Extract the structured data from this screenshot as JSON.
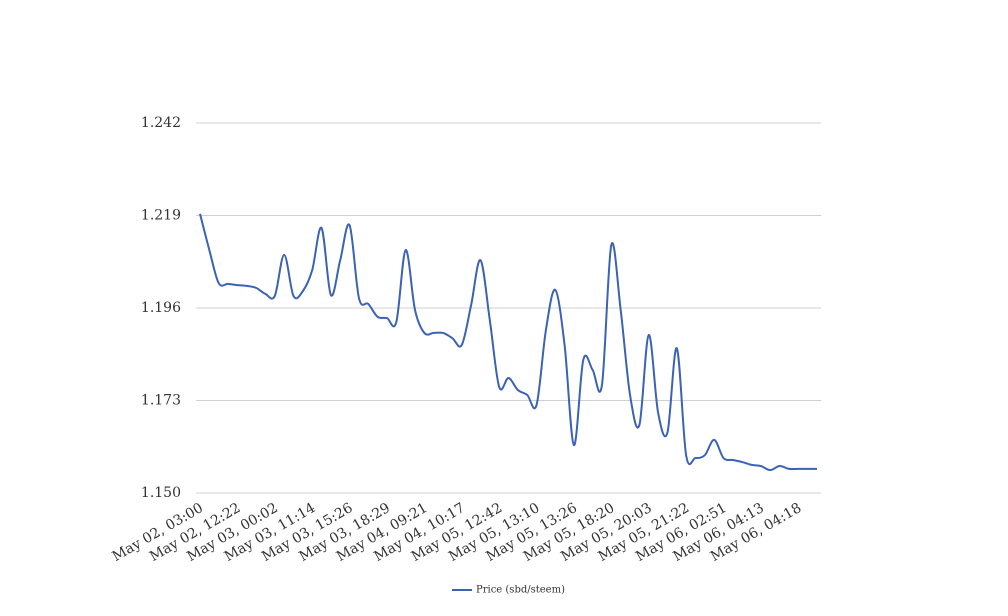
{
  "chart_data": {
    "type": "line",
    "categories": [
      "May 02, 03:00",
      null,
      null,
      null,
      "May 02, 12:22",
      null,
      null,
      null,
      "May 03, 00:02",
      null,
      null,
      null,
      "May 03, 11:14",
      null,
      null,
      null,
      "May 03, 15:26",
      null,
      null,
      null,
      "May 03, 18:29",
      null,
      null,
      null,
      "May 04, 09:21",
      null,
      null,
      null,
      "May 04, 10:17",
      null,
      null,
      null,
      "May 05, 12:42",
      null,
      null,
      null,
      "May 05, 13:10",
      null,
      null,
      null,
      "May 05, 13:26",
      null,
      null,
      null,
      "May 05, 18:20",
      null,
      null,
      null,
      "May 05, 20:03",
      null,
      null,
      null,
      "May 05, 21:22",
      null,
      null,
      null,
      "May 06, 02:51",
      null,
      null,
      null,
      "May 06, 04:13",
      null,
      null,
      null,
      "May 06, 04:18",
      null,
      null
    ],
    "series": [
      {
        "name": "Price (sbd/steem)",
        "color": "#3a62b5",
        "values": [
          1.2194,
          1.2104,
          1.2022,
          1.202,
          1.2017,
          1.2015,
          1.201,
          1.1995,
          1.199,
          1.2092,
          1.199,
          1.2002,
          1.2054,
          1.2159,
          1.1992,
          1.2079,
          1.2166,
          1.1985,
          1.197,
          1.1938,
          1.1935,
          1.1925,
          1.2104,
          1.1955,
          1.1898,
          1.1898,
          1.1898,
          1.1885,
          1.1868,
          1.1967,
          1.2079,
          1.193,
          1.1764,
          1.1786,
          1.1756,
          1.1744,
          1.1719,
          1.1905,
          1.2005,
          1.1868,
          1.1619,
          1.1831,
          1.1806,
          1.1769,
          1.2117,
          1.1955,
          1.1744,
          1.1669,
          1.1893,
          1.17,
          1.165,
          1.186,
          1.1594,
          1.1587,
          1.1594,
          1.1632,
          1.1587,
          1.1582,
          1.1577,
          1.157,
          1.1567,
          1.1557,
          1.1567,
          1.156,
          1.156,
          1.156,
          1.156
        ]
      }
    ],
    "ylim": [
      1.15,
      1.242
    ],
    "yticks": [
      {
        "value": 1.15,
        "label": "1.150"
      },
      1.173,
      1.196,
      1.219,
      1.242
    ],
    "grid": true,
    "legend": "bottom"
  }
}
